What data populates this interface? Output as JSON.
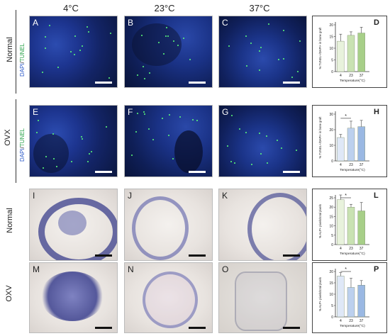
{
  "headers": [
    "4°C",
    "23°C",
    "37°C"
  ],
  "rows": {
    "normal1": "Normal",
    "ovx": "OVX",
    "normal2": "Normal",
    "oxv": "OXV"
  },
  "stain_label": {
    "dapi": "DAPI",
    "sep": "/",
    "tunel": "TUNEL"
  },
  "panels": [
    "A",
    "B",
    "C",
    "E",
    "F",
    "G",
    "I",
    "J",
    "K",
    "M",
    "N",
    "O"
  ],
  "chart_data": [
    {
      "type": "bar",
      "panel": "D",
      "categories": [
        "4",
        "23",
        "37"
      ],
      "values": [
        13,
        15.5,
        16.5
      ],
      "errors": [
        3,
        1.5,
        2.5
      ],
      "ylim": [
        0,
        20
      ],
      "yticks": [
        0,
        5,
        10,
        15,
        20
      ],
      "ylabel": "% TUNEL+/DAPI+ in bone graft",
      "xlabel": "Temperature(°C)",
      "colors": [
        "#e8f2dc",
        "#c9e2b2",
        "#a7cf88"
      ],
      "sig": null
    },
    {
      "type": "bar",
      "panel": "H",
      "categories": [
        "4",
        "23",
        "37"
      ],
      "values": [
        15,
        21,
        22
      ],
      "errors": [
        2,
        4.5,
        4
      ],
      "ylim": [
        0,
        30
      ],
      "yticks": [
        0,
        10,
        20,
        30
      ],
      "ylabel": "% TUNEL+/DAPI+ in bone graft",
      "xlabel": "Temperature(°C)",
      "colors": [
        "#dfe8f7",
        "#bcd0ee",
        "#9ab8e3"
      ],
      "sig": {
        "from": 0,
        "to": 1,
        "label": "*"
      }
    },
    {
      "type": "bar",
      "panel": "L",
      "categories": [
        "4",
        "23",
        "37"
      ],
      "values": [
        24,
        20,
        18
      ],
      "errors": [
        2.5,
        1.5,
        4.5
      ],
      "ylim": [
        0,
        25
      ],
      "yticks": [
        0,
        5,
        10,
        15,
        20,
        25
      ],
      "ylabel": "% ALP+ pixels/total pixels",
      "xlabel": "Temperature(°C)",
      "colors": [
        "#e8f2dc",
        "#c9e2b2",
        "#a7cf88"
      ],
      "sig": {
        "from": 0,
        "to": 1,
        "label": "*"
      }
    },
    {
      "type": "bar",
      "panel": "P",
      "categories": [
        "4",
        "23",
        "37"
      ],
      "values": [
        18,
        13,
        14
      ],
      "errors": [
        1.5,
        4,
        2
      ],
      "ylim": [
        0,
        20
      ],
      "yticks": [
        0,
        5,
        10,
        15,
        20
      ],
      "ylabel": "% ALP+ pixels/total pixels",
      "xlabel": "Temperature(°C)",
      "colors": [
        "#dfe8f7",
        "#bcd0ee",
        "#9ab8e3"
      ],
      "sig": {
        "from": 0,
        "to": 1,
        "label": "*"
      }
    }
  ]
}
